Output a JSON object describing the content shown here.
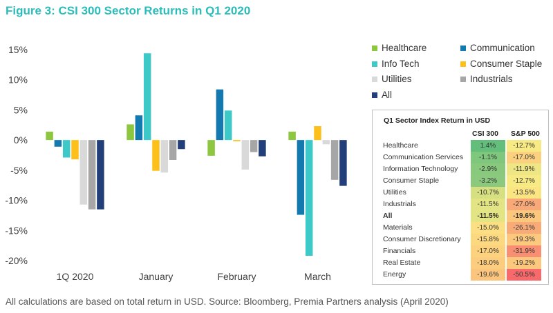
{
  "title": "Figure 3: CSI 300 Sector Returns in Q1 2020",
  "footer": "All calculations are based on total return in USD. Source: Bloomberg, Premia Partners analysis (April 2020)",
  "chart_data": {
    "type": "bar",
    "categories": [
      "1Q 2020",
      "January",
      "February",
      "March"
    ],
    "y_ticks": [
      "15%",
      "10%",
      "5%",
      "0%",
      "-5%",
      "-10%",
      "-15%",
      "-20%"
    ],
    "ylim": [
      -20,
      15
    ],
    "grid": false,
    "legend_position": "right",
    "series": [
      {
        "name": "Healthcare",
        "color": "#8dc63f",
        "values": [
          1.4,
          2.6,
          -2.6,
          1.4
        ]
      },
      {
        "name": "Communication",
        "color": "#1379ae",
        "values": [
          -1.1,
          4.1,
          8.4,
          -12.4
        ]
      },
      {
        "name": "Info Tech",
        "color": "#3ec9c9",
        "values": [
          -2.9,
          14.4,
          4.9,
          -19.2
        ]
      },
      {
        "name": "Consumer Staple",
        "color": "#fdbf1a",
        "values": [
          -3.2,
          -5.1,
          -0.2,
          2.3
        ]
      },
      {
        "name": "Utilities",
        "color": "#d9d9d9",
        "values": [
          -10.7,
          -5.4,
          -4.9,
          -0.7
        ]
      },
      {
        "name": "Industrials",
        "color": "#a6a6a6",
        "values": [
          -11.5,
          -3.3,
          -2.0,
          -6.6
        ]
      },
      {
        "name": "All",
        "color": "#223f79",
        "values": [
          -11.5,
          -1.5,
          -2.7,
          -7.6
        ]
      }
    ]
  },
  "table": {
    "title": "Q1 Sector Index Return in USD",
    "col1_header": "CSI 300",
    "col2_header": "S&P 500",
    "rows": [
      {
        "label": "Healthcare",
        "csi": "1.4%",
        "csi_color": "#63be7b",
        "sp": "-12.7%",
        "sp_color": "#f7e983",
        "bold": false
      },
      {
        "label": "Communication Services",
        "csi": "-1.1%",
        "csi_color": "#7ec77d",
        "sp": "-17.0%",
        "sp_color": "#fbd17f",
        "bold": false
      },
      {
        "label": "Information Technology",
        "csi": "-2.9%",
        "csi_color": "#88c97e",
        "sp": "-11.9%",
        "sp_color": "#eee584",
        "bold": false
      },
      {
        "label": "Consumer Staple",
        "csi": "-3.2%",
        "csi_color": "#8bca7e",
        "sp": "-12.7%",
        "sp_color": "#f7e983",
        "bold": false
      },
      {
        "label": "Utilities",
        "csi": "-10.7%",
        "csi_color": "#d6e081",
        "sp": "-13.5%",
        "sp_color": "#fbe583",
        "bold": false
      },
      {
        "label": "Industrials",
        "csi": "-11.5%",
        "csi_color": "#e3e483",
        "sp": "-27.0%",
        "sp_color": "#f9a877",
        "bold": false
      },
      {
        "label": "All",
        "csi": "-11.5%",
        "csi_color": "#e3e483",
        "sp": "-19.6%",
        "sp_color": "#fbc77d",
        "bold": true
      },
      {
        "label": "Materials",
        "csi": "-15.0%",
        "csi_color": "#fcdf82",
        "sp": "-26.1%",
        "sp_color": "#f9ab77",
        "bold": false
      },
      {
        "label": "Consumer Discretionary",
        "csi": "-15.8%",
        "csi_color": "#fcd881",
        "sp": "-19.3%",
        "sp_color": "#fbc87d",
        "bold": false
      },
      {
        "label": "Financials",
        "csi": "-17.0%",
        "csi_color": "#fcd27f",
        "sp": "-31.9%",
        "sp_color": "#f88f73",
        "bold": false
      },
      {
        "label": "Real Estate",
        "csi": "-18.0%",
        "csi_color": "#fccd7e",
        "sp": "-19.2%",
        "sp_color": "#fbc87d",
        "bold": false
      },
      {
        "label": "Energy",
        "csi": "-19.6%",
        "csi_color": "#fbc57d",
        "sp": "-50.5%",
        "sp_color": "#f8696b",
        "bold": false
      }
    ]
  }
}
